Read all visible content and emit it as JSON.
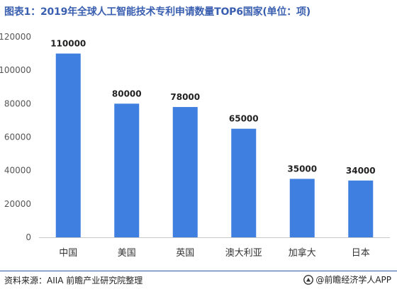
{
  "header": {
    "title": "图表1：2019年全球人工智能技术专利申请数量TOP6国家(单位：项)"
  },
  "footer": {
    "source": "资料来源：AIIA 前瞻产业研究院整理",
    "brand": "@前瞻经济学人APP"
  },
  "colors": {
    "bar": "#3f7fe0",
    "title": "#3a5fb0",
    "divider": "#2f56a6"
  },
  "chart_data": {
    "type": "bar",
    "title": "图表1：2019年全球人工智能技术专利申请数量TOP6国家(单位：项)",
    "categories": [
      "中国",
      "美国",
      "英国",
      "澳大利亚",
      "加拿大",
      "日本"
    ],
    "values": [
      110000,
      80000,
      78000,
      65000,
      35000,
      34000
    ],
    "yticks": [
      0,
      20000,
      40000,
      60000,
      80000,
      100000,
      120000
    ],
    "ylim": [
      0,
      120000
    ],
    "xlabel": "",
    "ylabel": "",
    "grid": false,
    "legend": "none"
  }
}
